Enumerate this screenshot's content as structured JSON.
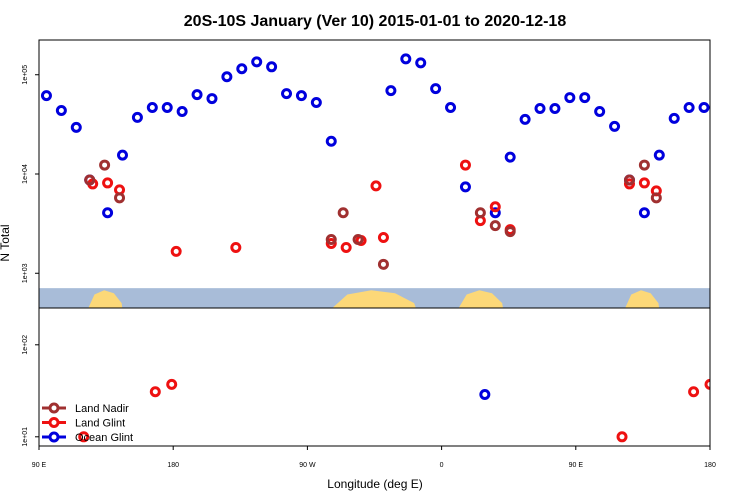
{
  "chart_data": {
    "type": "scatter",
    "title": "20S-10S January (Ver 10)   2015-01-01 to 2020-12-18",
    "xlabel": "Longitude (deg E)",
    "ylabel": "N Total",
    "x_ticks": [
      {
        "value": 0,
        "label": "90 E"
      },
      {
        "value": 90,
        "label": "180"
      },
      {
        "value": 180,
        "label": "90 W"
      },
      {
        "value": 270,
        "label": "0"
      },
      {
        "value": 360,
        "label": "90 E"
      },
      {
        "value": 450,
        "label": "180"
      }
    ],
    "xlim": [
      0,
      450
    ],
    "top_panel": {
      "y_scale": "log",
      "ylim_log10": [
        2.65,
        5.35
      ],
      "y_ticks": [
        {
          "log": 3,
          "label": "1e+03"
        },
        {
          "log": 4,
          "label": "1e+04"
        },
        {
          "log": 5,
          "label": "1e+05"
        }
      ],
      "map_band_log10": [
        2.42,
        2.85
      ]
    },
    "bottom_panel": {
      "y_scale": "log",
      "ylim_log10": [
        0.9,
        2.4
      ],
      "y_ticks": [
        {
          "log": 1,
          "label": "1e+01"
        },
        {
          "log": 2,
          "label": "1e+02"
        }
      ]
    },
    "colors": {
      "land_nadir": "#a03030",
      "land_glint": "#ee1111",
      "ocean_glint": "#0000dd",
      "ocean": "#a8bcd8",
      "land": "#fcd878"
    },
    "land_spans": [
      {
        "from": 32,
        "to": 58
      },
      {
        "from": 194,
        "to": 258
      },
      {
        "from": 280,
        "to": 314
      },
      {
        "from": 392,
        "to": 418
      }
    ],
    "legend": {
      "position": "bottom-left",
      "entries": [
        "Land Nadir",
        "Land Glint",
        "Ocean Glint"
      ]
    },
    "series": [
      {
        "name": "Ocean Glint",
        "panel": "top",
        "points": [
          [
            5,
            4.79
          ],
          [
            15,
            4.64
          ],
          [
            25,
            4.47
          ],
          [
            34,
            3.94
          ],
          [
            46,
            3.61
          ],
          [
            56,
            4.19
          ],
          [
            66,
            4.57
          ],
          [
            76,
            4.67
          ],
          [
            86,
            4.67
          ],
          [
            96,
            4.63
          ],
          [
            106,
            4.8
          ],
          [
            116,
            4.76
          ],
          [
            126,
            4.98
          ],
          [
            136,
            5.06
          ],
          [
            146,
            5.13
          ],
          [
            156,
            5.08
          ],
          [
            166,
            4.81
          ],
          [
            176,
            4.79
          ],
          [
            186,
            4.72
          ],
          [
            196,
            4.33
          ],
          [
            236,
            4.84
          ],
          [
            246,
            5.16
          ],
          [
            256,
            5.12
          ],
          [
            266,
            4.86
          ],
          [
            276,
            4.67
          ],
          [
            286,
            3.87
          ],
          [
            306,
            3.61
          ],
          [
            316,
            4.17
          ],
          [
            326,
            4.55
          ],
          [
            336,
            4.66
          ],
          [
            346,
            4.66
          ],
          [
            356,
            4.77
          ],
          [
            366,
            4.77
          ],
          [
            376,
            4.63
          ],
          [
            386,
            4.48
          ],
          [
            396,
            3.94
          ],
          [
            406,
            3.61
          ],
          [
            416,
            4.19
          ],
          [
            426,
            4.56
          ],
          [
            436,
            4.67
          ],
          [
            446,
            4.67
          ]
        ]
      },
      {
        "name": "Land Glint",
        "panel": "top",
        "points": [
          [
            36,
            3.9
          ],
          [
            46,
            3.91
          ],
          [
            54,
            3.84
          ],
          [
            92,
            3.22
          ],
          [
            132,
            3.26
          ],
          [
            196,
            3.3
          ],
          [
            206,
            3.26
          ],
          [
            216,
            3.33
          ],
          [
            226,
            3.88
          ],
          [
            231,
            3.36
          ],
          [
            286,
            4.09
          ],
          [
            296,
            3.53
          ],
          [
            306,
            3.67
          ],
          [
            316,
            3.44
          ],
          [
            396,
            3.9
          ],
          [
            406,
            3.91
          ],
          [
            414,
            3.83
          ]
        ]
      },
      {
        "name": "Land Nadir",
        "panel": "top",
        "points": [
          [
            34,
            3.94
          ],
          [
            44,
            4.09
          ],
          [
            54,
            3.76
          ],
          [
            196,
            3.34
          ],
          [
            204,
            3.61
          ],
          [
            214,
            3.34
          ],
          [
            231,
            3.09
          ],
          [
            296,
            3.61
          ],
          [
            306,
            3.48
          ],
          [
            316,
            3.42
          ],
          [
            396,
            3.94
          ],
          [
            406,
            4.09
          ],
          [
            414,
            3.76
          ]
        ]
      },
      {
        "name": "Land Glint",
        "panel": "bottom",
        "points": [
          [
            30,
            1.0
          ],
          [
            78,
            1.49
          ],
          [
            89,
            1.57
          ],
          [
            391,
            1.0
          ],
          [
            439,
            1.49
          ],
          [
            450,
            1.57
          ]
        ]
      },
      {
        "name": "Ocean Glint",
        "panel": "bottom",
        "points": [
          [
            299,
            1.46
          ]
        ]
      }
    ]
  }
}
